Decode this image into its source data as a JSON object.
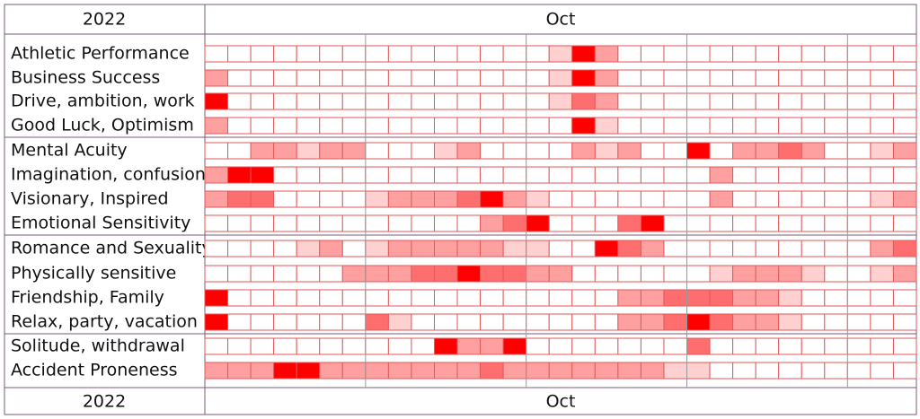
{
  "header": {
    "year": "2022",
    "month": "Oct"
  },
  "footer": {
    "year": "2022",
    "month": "Oct"
  },
  "level_colors": [
    "#ffffff",
    "#ffd0d0",
    "#ffa0a0",
    "#ff6e6e",
    "#ff0000"
  ],
  "rows": [
    {
      "label": "Athletic Performance",
      "levels": [
        0,
        0,
        0,
        0,
        0,
        0,
        0,
        0,
        0,
        0,
        0,
        0,
        0,
        0,
        0,
        1,
        4,
        2,
        0,
        0,
        0,
        0,
        0,
        0,
        0,
        0,
        0,
        0,
        0,
        0,
        0
      ]
    },
    {
      "label": "Business Success",
      "levels": [
        2,
        0,
        0,
        0,
        0,
        0,
        0,
        0,
        0,
        0,
        0,
        0,
        0,
        0,
        0,
        1,
        4,
        2,
        0,
        0,
        0,
        0,
        0,
        0,
        0,
        0,
        0,
        0,
        0,
        0,
        0
      ]
    },
    {
      "label": "Drive, ambition, work",
      "levels": [
        4,
        0,
        0,
        0,
        0,
        0,
        0,
        0,
        0,
        0,
        0,
        0,
        0,
        0,
        0,
        1,
        3,
        2,
        0,
        0,
        0,
        0,
        0,
        0,
        0,
        0,
        0,
        0,
        0,
        0,
        0
      ]
    },
    {
      "label": "Good Luck, Optimism",
      "levels": [
        2,
        0,
        0,
        0,
        0,
        0,
        0,
        0,
        0,
        0,
        0,
        0,
        0,
        0,
        0,
        0,
        4,
        1,
        0,
        0,
        0,
        0,
        0,
        0,
        0,
        0,
        0,
        0,
        0,
        0,
        0
      ]
    },
    {
      "label": "Mental Acuity",
      "levels": [
        0,
        0,
        2,
        2,
        1,
        2,
        2,
        0,
        0,
        0,
        1,
        2,
        0,
        0,
        0,
        0,
        2,
        1,
        2,
        0,
        0,
        4,
        0,
        2,
        2,
        3,
        2,
        0,
        0,
        1,
        2
      ]
    },
    {
      "label": "Imagination, confusion",
      "levels": [
        2,
        4,
        4,
        0,
        0,
        0,
        0,
        0,
        0,
        0,
        0,
        0,
        0,
        0,
        0,
        0,
        0,
        0,
        0,
        0,
        0,
        0,
        2,
        0,
        0,
        0,
        0,
        0,
        0,
        0,
        0
      ]
    },
    {
      "label": "Visionary, Inspired",
      "levels": [
        2,
        3,
        3,
        0,
        0,
        0,
        0,
        1,
        2,
        2,
        2,
        3,
        4,
        2,
        1,
        0,
        0,
        0,
        0,
        0,
        0,
        0,
        2,
        0,
        0,
        0,
        0,
        0,
        0,
        1,
        2
      ]
    },
    {
      "label": "Emotional Sensitivity",
      "levels": [
        0,
        0,
        0,
        0,
        0,
        0,
        0,
        0,
        0,
        0,
        0,
        0,
        2,
        3,
        4,
        0,
        0,
        0,
        3,
        4,
        0,
        0,
        0,
        0,
        0,
        0,
        0,
        0,
        0,
        0,
        0
      ]
    },
    {
      "label": "Romance and Sexuality",
      "levels": [
        0,
        0,
        0,
        0,
        1,
        2,
        0,
        1,
        2,
        2,
        2,
        2,
        2,
        1,
        1,
        0,
        0,
        4,
        3,
        2,
        0,
        0,
        0,
        0,
        0,
        0,
        0,
        0,
        0,
        2,
        3
      ]
    },
    {
      "label": "Physically sensitive",
      "levels": [
        0,
        0,
        0,
        0,
        0,
        0,
        2,
        2,
        2,
        3,
        3,
        4,
        3,
        3,
        2,
        2,
        0,
        0,
        0,
        0,
        0,
        0,
        1,
        2,
        2,
        2,
        1,
        0,
        0,
        1,
        2
      ]
    },
    {
      "label": "Friendship, Family",
      "levels": [
        4,
        0,
        0,
        0,
        0,
        0,
        0,
        0,
        0,
        0,
        0,
        0,
        0,
        0,
        0,
        0,
        0,
        0,
        2,
        2,
        3,
        3,
        3,
        2,
        2,
        1,
        0,
        0,
        0,
        0,
        0
      ]
    },
    {
      "label": "Relax, party, vacation",
      "levels": [
        4,
        0,
        0,
        0,
        0,
        0,
        0,
        3,
        1,
        0,
        0,
        0,
        0,
        0,
        0,
        0,
        0,
        0,
        2,
        2,
        3,
        4,
        3,
        2,
        2,
        1,
        0,
        0,
        0,
        0,
        0
      ]
    },
    {
      "label": "Solitude, withdrawal",
      "levels": [
        0,
        0,
        0,
        0,
        0,
        0,
        0,
        0,
        0,
        0,
        4,
        2,
        2,
        4,
        0,
        0,
        0,
        0,
        0,
        0,
        0,
        3,
        0,
        0,
        0,
        0,
        0,
        0,
        0,
        0,
        0
      ]
    },
    {
      "label": "Accident Proneness",
      "levels": [
        2,
        2,
        2,
        4,
        4,
        2,
        2,
        2,
        2,
        2,
        2,
        2,
        3,
        2,
        2,
        2,
        2,
        2,
        2,
        2,
        1,
        1,
        0,
        0,
        0,
        0,
        0,
        0,
        0,
        0,
        0
      ]
    }
  ]
}
